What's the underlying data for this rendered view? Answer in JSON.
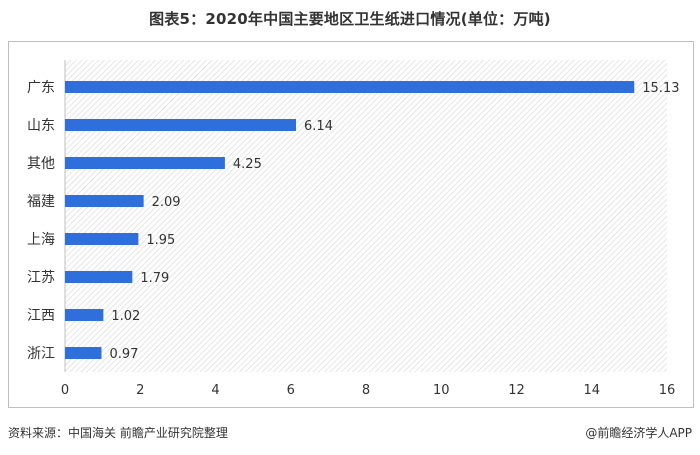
{
  "title": "图表5：2020年中国主要地区卫生纸进口情况(单位：万吨)",
  "footer": {
    "source": "资料来源：中国海关 前瞻产业研究院整理",
    "brand": "@前瞻经济学人APP"
  },
  "colors": {
    "bar": "#2f6fdc",
    "plot_background_hatch": "#d9d9d9",
    "frame": "#bfbfbf"
  },
  "chart_data": {
    "type": "bar",
    "orientation": "horizontal",
    "categories": [
      "广东",
      "山东",
      "其他",
      "福建",
      "上海",
      "江苏",
      "江西",
      "浙江"
    ],
    "values": [
      15.13,
      6.14,
      4.25,
      2.09,
      1.95,
      1.79,
      1.02,
      0.97
    ],
    "value_labels": [
      "15.13",
      "6.14",
      "4.25",
      "2.09",
      "1.95",
      "1.79",
      "1.02",
      "0.97"
    ],
    "xlim": [
      0,
      16
    ],
    "xticks": [
      0,
      2,
      4,
      6,
      8,
      10,
      12,
      14,
      16
    ],
    "grid": false,
    "legend": "none",
    "title": "图表5：2020年中国主要地区卫生纸进口情况(单位：万吨)"
  }
}
